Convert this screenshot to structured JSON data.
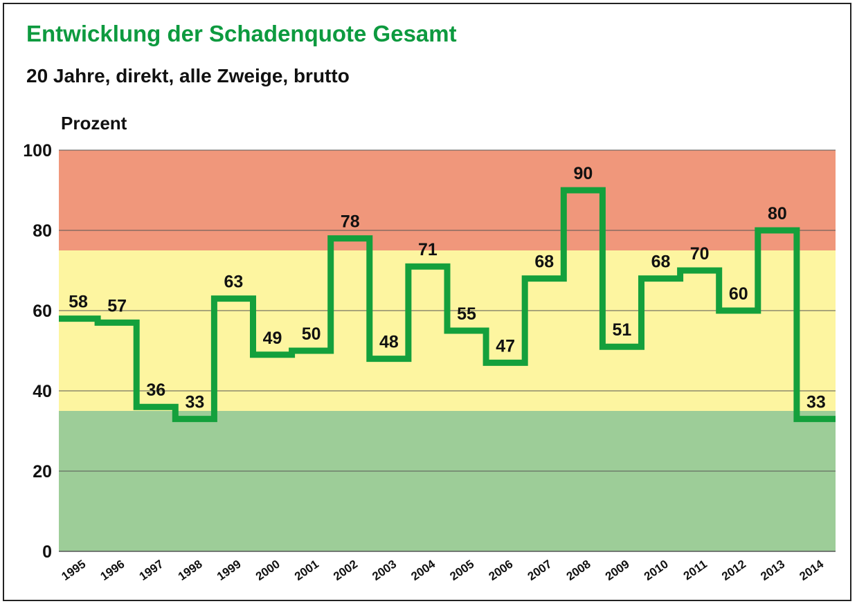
{
  "chart_data": {
    "type": "line",
    "title": "Entwicklung der Schadenquote Gesamt",
    "subtitle": "20 Jahre, direkt, alle Zweige, brutto",
    "ylabel": "Prozent",
    "xlabel": "",
    "ylim": [
      0,
      100
    ],
    "yticks": [
      0,
      20,
      40,
      60,
      80,
      100
    ],
    "grid": true,
    "categories": [
      "1995",
      "1996",
      "1997",
      "1998",
      "1999",
      "2000",
      "2001",
      "2002",
      "2003",
      "2004",
      "2005",
      "2006",
      "2007",
      "2008",
      "2009",
      "2010",
      "2011",
      "2012",
      "2013",
      "2014"
    ],
    "series": [
      {
        "values": [
          58,
          57,
          36,
          33,
          63,
          49,
          50,
          78,
          48,
          71,
          55,
          47,
          68,
          90,
          51,
          68,
          70,
          60,
          80,
          33
        ]
      }
    ],
    "bands": [
      {
        "from": 0,
        "to": 35,
        "color": "#9dcd98"
      },
      {
        "from": 35,
        "to": 75,
        "color": "#fdf5a0"
      },
      {
        "from": 75,
        "to": 100,
        "color": "#f0977b"
      }
    ],
    "line_color": "#14a03c",
    "title_color": "#0d9a3f"
  }
}
